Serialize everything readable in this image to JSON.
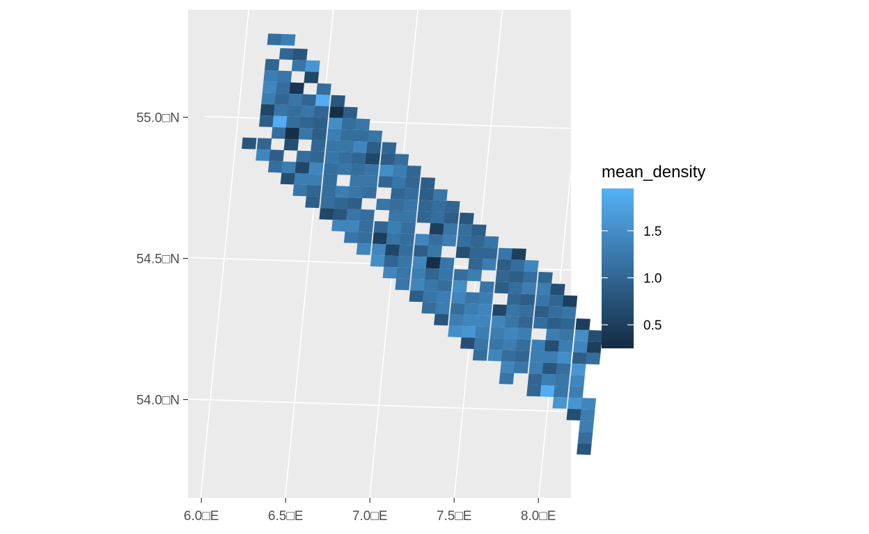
{
  "chart_data": {
    "type": "heatmap",
    "title": "",
    "xlabel": "",
    "ylabel": "",
    "xlim": [
      6.0,
      8.2
    ],
    "ylim": [
      53.7,
      55.3
    ],
    "x_ticks": [
      {
        "value": 6.0,
        "label": "6.0□E"
      },
      {
        "value": 6.5,
        "label": "6.5□E"
      },
      {
        "value": 7.0,
        "label": "7.0□E"
      },
      {
        "value": 7.5,
        "label": "7.5□E"
      },
      {
        "value": 8.0,
        "label": "8.0□E"
      }
    ],
    "y_ticks": [
      {
        "value": 55.0,
        "label": "55.0□N"
      },
      {
        "value": 54.5,
        "label": "54.5□N"
      },
      {
        "value": 54.0,
        "label": "54.0□N"
      }
    ],
    "grid": true,
    "legend": {
      "title": "mean_density",
      "position": "right",
      "min": 0.25,
      "max": 1.95,
      "ticks": [
        0.5,
        1.0,
        1.5
      ],
      "tick_labels": [
        "0.5",
        "1.0",
        "1.5"
      ],
      "color_low": "#132B43",
      "color_high": "#56B1F7"
    },
    "cell_size_deg": [
      0.0825,
      0.04
    ],
    "cells": [
      [
        6.17,
        55.28,
        1.1
      ],
      [
        6.25,
        55.28,
        1.3
      ],
      [
        6.25,
        55.23,
        1.0
      ],
      [
        6.33,
        55.23,
        0.8
      ],
      [
        6.17,
        55.19,
        1.0
      ],
      [
        6.33,
        55.19,
        1.2
      ],
      [
        6.41,
        55.19,
        1.6
      ],
      [
        6.17,
        55.15,
        1.3
      ],
      [
        6.25,
        55.15,
        1.2
      ],
      [
        6.41,
        55.15,
        0.6
      ],
      [
        6.17,
        55.11,
        1.4
      ],
      [
        6.25,
        55.11,
        1.1
      ],
      [
        6.33,
        55.11,
        0.4
      ],
      [
        6.49,
        55.11,
        1.1
      ],
      [
        6.17,
        55.07,
        1.3
      ],
      [
        6.25,
        55.07,
        1.0
      ],
      [
        6.33,
        55.07,
        1.2
      ],
      [
        6.41,
        55.07,
        1.0
      ],
      [
        6.49,
        55.07,
        1.9
      ],
      [
        6.58,
        55.07,
        0.8
      ],
      [
        6.17,
        55.03,
        0.6
      ],
      [
        6.25,
        55.03,
        1.2
      ],
      [
        6.33,
        55.03,
        1.1
      ],
      [
        6.41,
        55.03,
        1.2
      ],
      [
        6.49,
        55.03,
        1.0
      ],
      [
        6.58,
        55.03,
        0.3
      ],
      [
        6.66,
        55.03,
        0.9
      ],
      [
        6.17,
        54.99,
        0.9
      ],
      [
        6.25,
        54.99,
        1.9
      ],
      [
        6.33,
        54.99,
        1.1
      ],
      [
        6.41,
        54.99,
        1.0
      ],
      [
        6.49,
        54.99,
        0.9
      ],
      [
        6.58,
        54.99,
        1.5
      ],
      [
        6.66,
        54.99,
        1.1
      ],
      [
        6.74,
        54.99,
        1.2
      ],
      [
        6.25,
        54.95,
        1.1
      ],
      [
        6.33,
        54.95,
        0.3
      ],
      [
        6.41,
        54.95,
        1.2
      ],
      [
        6.49,
        54.95,
        0.9
      ],
      [
        6.58,
        54.95,
        1.3
      ],
      [
        6.66,
        54.95,
        1.1
      ],
      [
        6.74,
        54.95,
        1.1
      ],
      [
        6.82,
        54.95,
        1.2
      ],
      [
        6.08,
        54.91,
        0.8
      ],
      [
        6.17,
        54.91,
        1.0
      ],
      [
        6.33,
        54.91,
        0.7
      ],
      [
        6.49,
        54.91,
        1.0
      ],
      [
        6.58,
        54.91,
        1.2
      ],
      [
        6.66,
        54.91,
        1.2
      ],
      [
        6.74,
        54.91,
        1.4
      ],
      [
        6.82,
        54.91,
        0.9
      ],
      [
        6.91,
        54.91,
        1.0
      ],
      [
        6.17,
        54.87,
        1.4
      ],
      [
        6.25,
        54.87,
        0.9
      ],
      [
        6.41,
        54.87,
        1.1
      ],
      [
        6.49,
        54.87,
        1.0
      ],
      [
        6.58,
        54.87,
        1.2
      ],
      [
        6.66,
        54.87,
        1.1
      ],
      [
        6.74,
        54.87,
        1.0
      ],
      [
        6.82,
        54.87,
        0.6
      ],
      [
        6.91,
        54.87,
        0.9
      ],
      [
        6.99,
        54.87,
        1.1
      ],
      [
        6.25,
        54.83,
        1.1
      ],
      [
        6.33,
        54.83,
        1.3
      ],
      [
        6.41,
        54.83,
        0.6
      ],
      [
        6.49,
        54.83,
        1.4
      ],
      [
        6.58,
        54.83,
        1.1
      ],
      [
        6.66,
        54.83,
        1.2
      ],
      [
        6.74,
        54.83,
        1.1
      ],
      [
        6.82,
        54.83,
        1.2
      ],
      [
        6.91,
        54.83,
        1.5
      ],
      [
        6.99,
        54.83,
        1.3
      ],
      [
        7.07,
        54.83,
        1.0
      ],
      [
        6.33,
        54.79,
        0.7
      ],
      [
        6.41,
        54.79,
        1.3
      ],
      [
        6.49,
        54.79,
        1.3
      ],
      [
        6.58,
        54.79,
        1.1
      ],
      [
        6.74,
        54.79,
        1.2
      ],
      [
        6.82,
        54.79,
        1.2
      ],
      [
        6.91,
        54.79,
        1.0
      ],
      [
        6.99,
        54.79,
        1.2
      ],
      [
        7.07,
        54.79,
        1.0
      ],
      [
        7.16,
        54.79,
        0.9
      ],
      [
        6.41,
        54.75,
        1.2
      ],
      [
        6.49,
        54.75,
        1.0
      ],
      [
        6.58,
        54.75,
        1.1
      ],
      [
        6.66,
        54.75,
        1.3
      ],
      [
        6.74,
        54.75,
        1.2
      ],
      [
        6.82,
        54.75,
        1.1
      ],
      [
        6.99,
        54.75,
        1.0
      ],
      [
        7.07,
        54.75,
        1.1
      ],
      [
        7.16,
        54.75,
        0.9
      ],
      [
        7.24,
        54.75,
        1.2
      ],
      [
        6.49,
        54.71,
        0.9
      ],
      [
        6.58,
        54.71,
        1.1
      ],
      [
        6.66,
        54.71,
        1.0
      ],
      [
        6.74,
        54.71,
        0.9
      ],
      [
        6.91,
        54.71,
        1.2
      ],
      [
        6.99,
        54.71,
        1.1
      ],
      [
        7.07,
        54.71,
        1.2
      ],
      [
        7.16,
        54.71,
        1.0
      ],
      [
        7.24,
        54.71,
        1.1
      ],
      [
        7.32,
        54.71,
        1.0
      ],
      [
        6.58,
        54.67,
        0.6
      ],
      [
        6.66,
        54.67,
        0.8
      ],
      [
        6.74,
        54.67,
        1.2
      ],
      [
        6.82,
        54.67,
        1.1
      ],
      [
        6.99,
        54.67,
        1.2
      ],
      [
        7.07,
        54.67,
        1.2
      ],
      [
        7.16,
        54.67,
        1.0
      ],
      [
        7.24,
        54.67,
        1.1
      ],
      [
        7.32,
        54.67,
        0.9
      ],
      [
        7.41,
        54.67,
        0.8
      ],
      [
        6.66,
        54.63,
        1.4
      ],
      [
        6.74,
        54.63,
        1.4
      ],
      [
        6.82,
        54.63,
        1.1
      ],
      [
        6.91,
        54.63,
        1.0
      ],
      [
        6.99,
        54.63,
        1.3
      ],
      [
        7.07,
        54.63,
        1.1
      ],
      [
        7.24,
        54.63,
        0.5
      ],
      [
        7.32,
        54.63,
        1.2
      ],
      [
        7.41,
        54.63,
        1.1
      ],
      [
        7.49,
        54.63,
        0.9
      ],
      [
        6.74,
        54.59,
        1.2
      ],
      [
        6.82,
        54.59,
        1.1
      ],
      [
        6.91,
        54.59,
        0.5
      ],
      [
        6.99,
        54.59,
        1.2
      ],
      [
        7.07,
        54.59,
        1.1
      ],
      [
        7.16,
        54.59,
        1.4
      ],
      [
        7.24,
        54.59,
        1.1
      ],
      [
        7.32,
        54.59,
        1.3
      ],
      [
        7.41,
        54.59,
        1.1
      ],
      [
        7.49,
        54.59,
        1.0
      ],
      [
        7.57,
        54.59,
        1.2
      ],
      [
        6.82,
        54.55,
        1.4
      ],
      [
        6.91,
        54.55,
        1.4
      ],
      [
        6.99,
        54.55,
        0.6
      ],
      [
        7.07,
        54.55,
        1.1
      ],
      [
        7.16,
        54.55,
        0.9
      ],
      [
        7.24,
        54.55,
        1.2
      ],
      [
        7.41,
        54.55,
        0.7
      ],
      [
        7.49,
        54.55,
        1.0
      ],
      [
        7.57,
        54.55,
        1.0
      ],
      [
        7.66,
        54.55,
        1.2
      ],
      [
        7.74,
        54.55,
        0.5
      ],
      [
        6.91,
        54.51,
        1.5
      ],
      [
        6.99,
        54.51,
        1.0
      ],
      [
        7.07,
        54.51,
        1.2
      ],
      [
        7.16,
        54.51,
        1.4
      ],
      [
        7.24,
        54.51,
        0.3
      ],
      [
        7.32,
        54.51,
        1.2
      ],
      [
        7.49,
        54.51,
        1.0
      ],
      [
        7.57,
        54.51,
        1.3
      ],
      [
        7.66,
        54.51,
        0.9
      ],
      [
        7.74,
        54.51,
        1.1
      ],
      [
        7.82,
        54.51,
        1.4
      ],
      [
        6.99,
        54.47,
        1.4
      ],
      [
        7.07,
        54.47,
        1.2
      ],
      [
        7.16,
        54.47,
        1.3
      ],
      [
        7.24,
        54.47,
        1.0
      ],
      [
        7.32,
        54.47,
        1.2
      ],
      [
        7.41,
        54.47,
        1.1
      ],
      [
        7.49,
        54.47,
        1.3
      ],
      [
        7.66,
        54.47,
        1.0
      ],
      [
        7.74,
        54.47,
        0.9
      ],
      [
        7.82,
        54.47,
        1.1
      ],
      [
        7.91,
        54.47,
        1.0
      ],
      [
        7.07,
        54.43,
        1.2
      ],
      [
        7.16,
        54.43,
        1.4
      ],
      [
        7.24,
        54.43,
        1.2
      ],
      [
        7.32,
        54.43,
        1.1
      ],
      [
        7.41,
        54.43,
        1.5
      ],
      [
        7.57,
        54.43,
        1.2
      ],
      [
        7.66,
        54.43,
        0.9
      ],
      [
        7.74,
        54.43,
        1.1
      ],
      [
        7.82,
        54.43,
        1.3
      ],
      [
        7.91,
        54.43,
        1.3
      ],
      [
        7.99,
        54.43,
        0.7
      ],
      [
        7.16,
        54.39,
        0.9
      ],
      [
        7.24,
        54.39,
        1.2
      ],
      [
        7.32,
        54.39,
        1.3
      ],
      [
        7.41,
        54.39,
        1.4
      ],
      [
        7.49,
        54.39,
        1.2
      ],
      [
        7.57,
        54.39,
        1.3
      ],
      [
        7.74,
        54.39,
        1.0
      ],
      [
        7.82,
        54.39,
        0.9
      ],
      [
        7.91,
        54.39,
        1.2
      ],
      [
        7.99,
        54.39,
        1.0
      ],
      [
        8.07,
        54.39,
        0.5
      ],
      [
        7.24,
        54.35,
        1.1
      ],
      [
        7.32,
        54.35,
        1.3
      ],
      [
        7.41,
        54.35,
        1.1
      ],
      [
        7.49,
        54.35,
        1.3
      ],
      [
        7.57,
        54.35,
        1.4
      ],
      [
        7.66,
        54.35,
        0.6
      ],
      [
        7.74,
        54.35,
        1.2
      ],
      [
        7.82,
        54.35,
        1.1
      ],
      [
        7.91,
        54.35,
        0.9
      ],
      [
        7.99,
        54.35,
        1.1
      ],
      [
        8.07,
        54.35,
        1.2
      ],
      [
        7.32,
        54.31,
        0.8
      ],
      [
        7.41,
        54.31,
        1.3
      ],
      [
        7.49,
        54.31,
        1.4
      ],
      [
        7.57,
        54.31,
        1.4
      ],
      [
        7.66,
        54.31,
        1.4
      ],
      [
        7.74,
        54.31,
        1.2
      ],
      [
        7.82,
        54.31,
        1.0
      ],
      [
        7.91,
        54.31,
        1.1
      ],
      [
        7.99,
        54.31,
        0.9
      ],
      [
        8.07,
        54.31,
        1.0
      ],
      [
        8.16,
        54.31,
        0.5
      ],
      [
        7.41,
        54.27,
        1.5
      ],
      [
        7.49,
        54.27,
        1.6
      ],
      [
        7.57,
        54.27,
        1.3
      ],
      [
        7.66,
        54.27,
        1.3
      ],
      [
        7.74,
        54.27,
        1.4
      ],
      [
        7.82,
        54.27,
        1.3
      ],
      [
        7.99,
        54.27,
        1.3
      ],
      [
        8.07,
        54.27,
        1.2
      ],
      [
        8.16,
        54.27,
        1.5
      ],
      [
        8.24,
        54.27,
        0.7
      ],
      [
        7.49,
        54.23,
        0.7
      ],
      [
        7.57,
        54.23,
        1.2
      ],
      [
        7.66,
        54.23,
        1.2
      ],
      [
        7.74,
        54.23,
        1.3
      ],
      [
        7.82,
        54.23,
        1.1
      ],
      [
        7.91,
        54.23,
        1.3
      ],
      [
        7.99,
        54.23,
        0.7
      ],
      [
        8.07,
        54.23,
        1.3
      ],
      [
        8.16,
        54.23,
        1.4
      ],
      [
        8.24,
        54.23,
        0.5
      ],
      [
        7.57,
        54.19,
        1.1
      ],
      [
        7.66,
        54.19,
        1.4
      ],
      [
        7.74,
        54.19,
        1.1
      ],
      [
        7.82,
        54.19,
        1.0
      ],
      [
        7.91,
        54.19,
        1.3
      ],
      [
        7.99,
        54.19,
        1.3
      ],
      [
        8.07,
        54.19,
        1.5
      ],
      [
        8.16,
        54.19,
        0.9
      ],
      [
        8.24,
        54.19,
        1.1
      ],
      [
        7.74,
        54.15,
        1.4
      ],
      [
        7.82,
        54.15,
        1.2
      ],
      [
        7.91,
        54.15,
        1.3
      ],
      [
        7.99,
        54.15,
        0.8
      ],
      [
        8.07,
        54.15,
        1.1
      ],
      [
        8.16,
        54.15,
        1.6
      ],
      [
        7.74,
        54.11,
        1.2
      ],
      [
        7.91,
        54.11,
        1.0
      ],
      [
        7.99,
        54.11,
        1.3
      ],
      [
        8.07,
        54.11,
        1.2
      ],
      [
        8.16,
        54.11,
        1.4
      ],
      [
        7.91,
        54.07,
        1.0
      ],
      [
        7.99,
        54.07,
        1.9
      ],
      [
        8.07,
        54.07,
        1.2
      ],
      [
        8.16,
        54.07,
        1.3
      ],
      [
        8.07,
        54.03,
        1.6
      ],
      [
        8.16,
        54.03,
        1.6
      ],
      [
        8.24,
        54.03,
        1.4
      ],
      [
        8.16,
        53.99,
        0.7
      ],
      [
        8.24,
        53.99,
        1.3
      ],
      [
        8.24,
        53.95,
        1.3
      ],
      [
        8.24,
        53.91,
        1.1
      ],
      [
        8.24,
        53.87,
        0.8
      ]
    ]
  }
}
